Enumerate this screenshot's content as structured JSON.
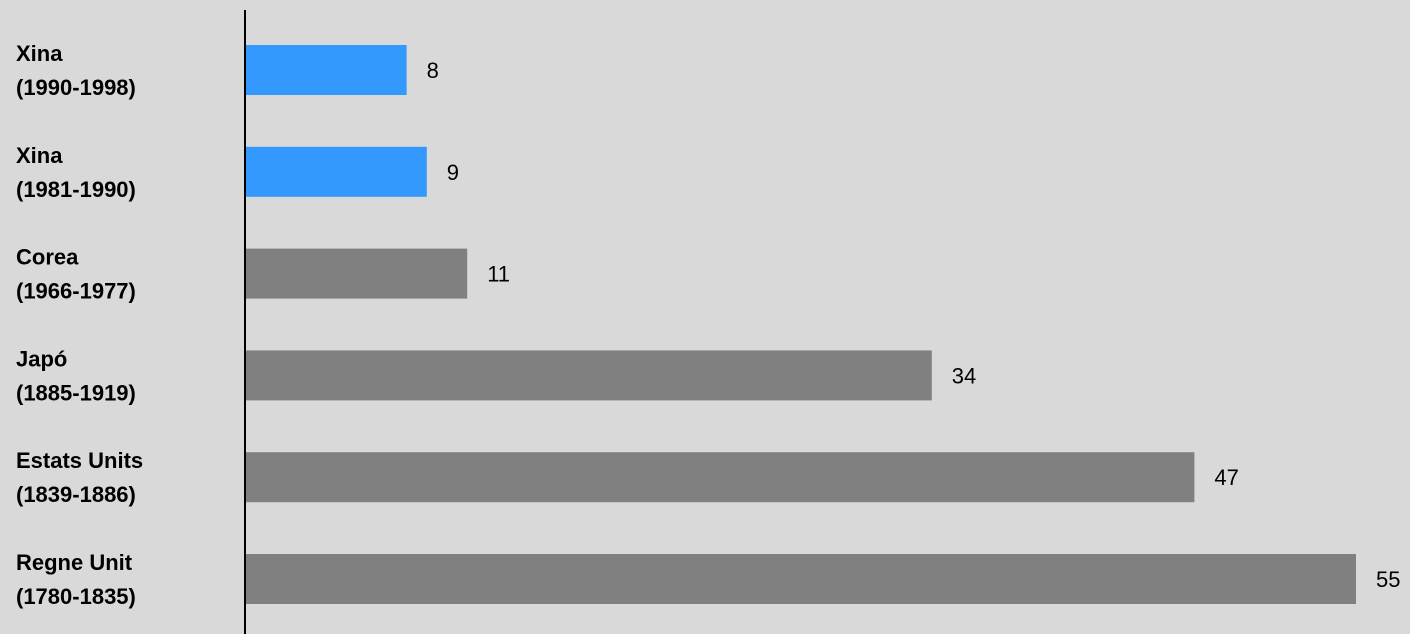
{
  "chart_data": {
    "type": "bar",
    "orientation": "horizontal",
    "title": "",
    "xlabel": "",
    "ylabel": "",
    "xlim": [
      0,
      55
    ],
    "grid": false,
    "legend": "none",
    "categories": [
      [
        "Xina",
        "(1990-1998)"
      ],
      [
        "Xina",
        "(1981-1990)"
      ],
      [
        "Corea",
        "(1966-1977)"
      ],
      [
        "Japó",
        "(1885-1919)"
      ],
      [
        "Estats Units",
        "(1839-1886)"
      ],
      [
        "Regne Unit",
        "(1780-1835)"
      ]
    ],
    "values": [
      8,
      9,
      11,
      34,
      47,
      55
    ],
    "value_labels": [
      "8",
      "9",
      "11",
      "34",
      "47",
      "55"
    ],
    "bar_colors": [
      "#3399ff",
      "#3399ff",
      "#808080",
      "#808080",
      "#808080",
      "#808080"
    ]
  },
  "colors": {
    "background": "#d9d9d9",
    "highlight": "#3399ff",
    "default_bar": "#808080",
    "axis": "#000000"
  }
}
